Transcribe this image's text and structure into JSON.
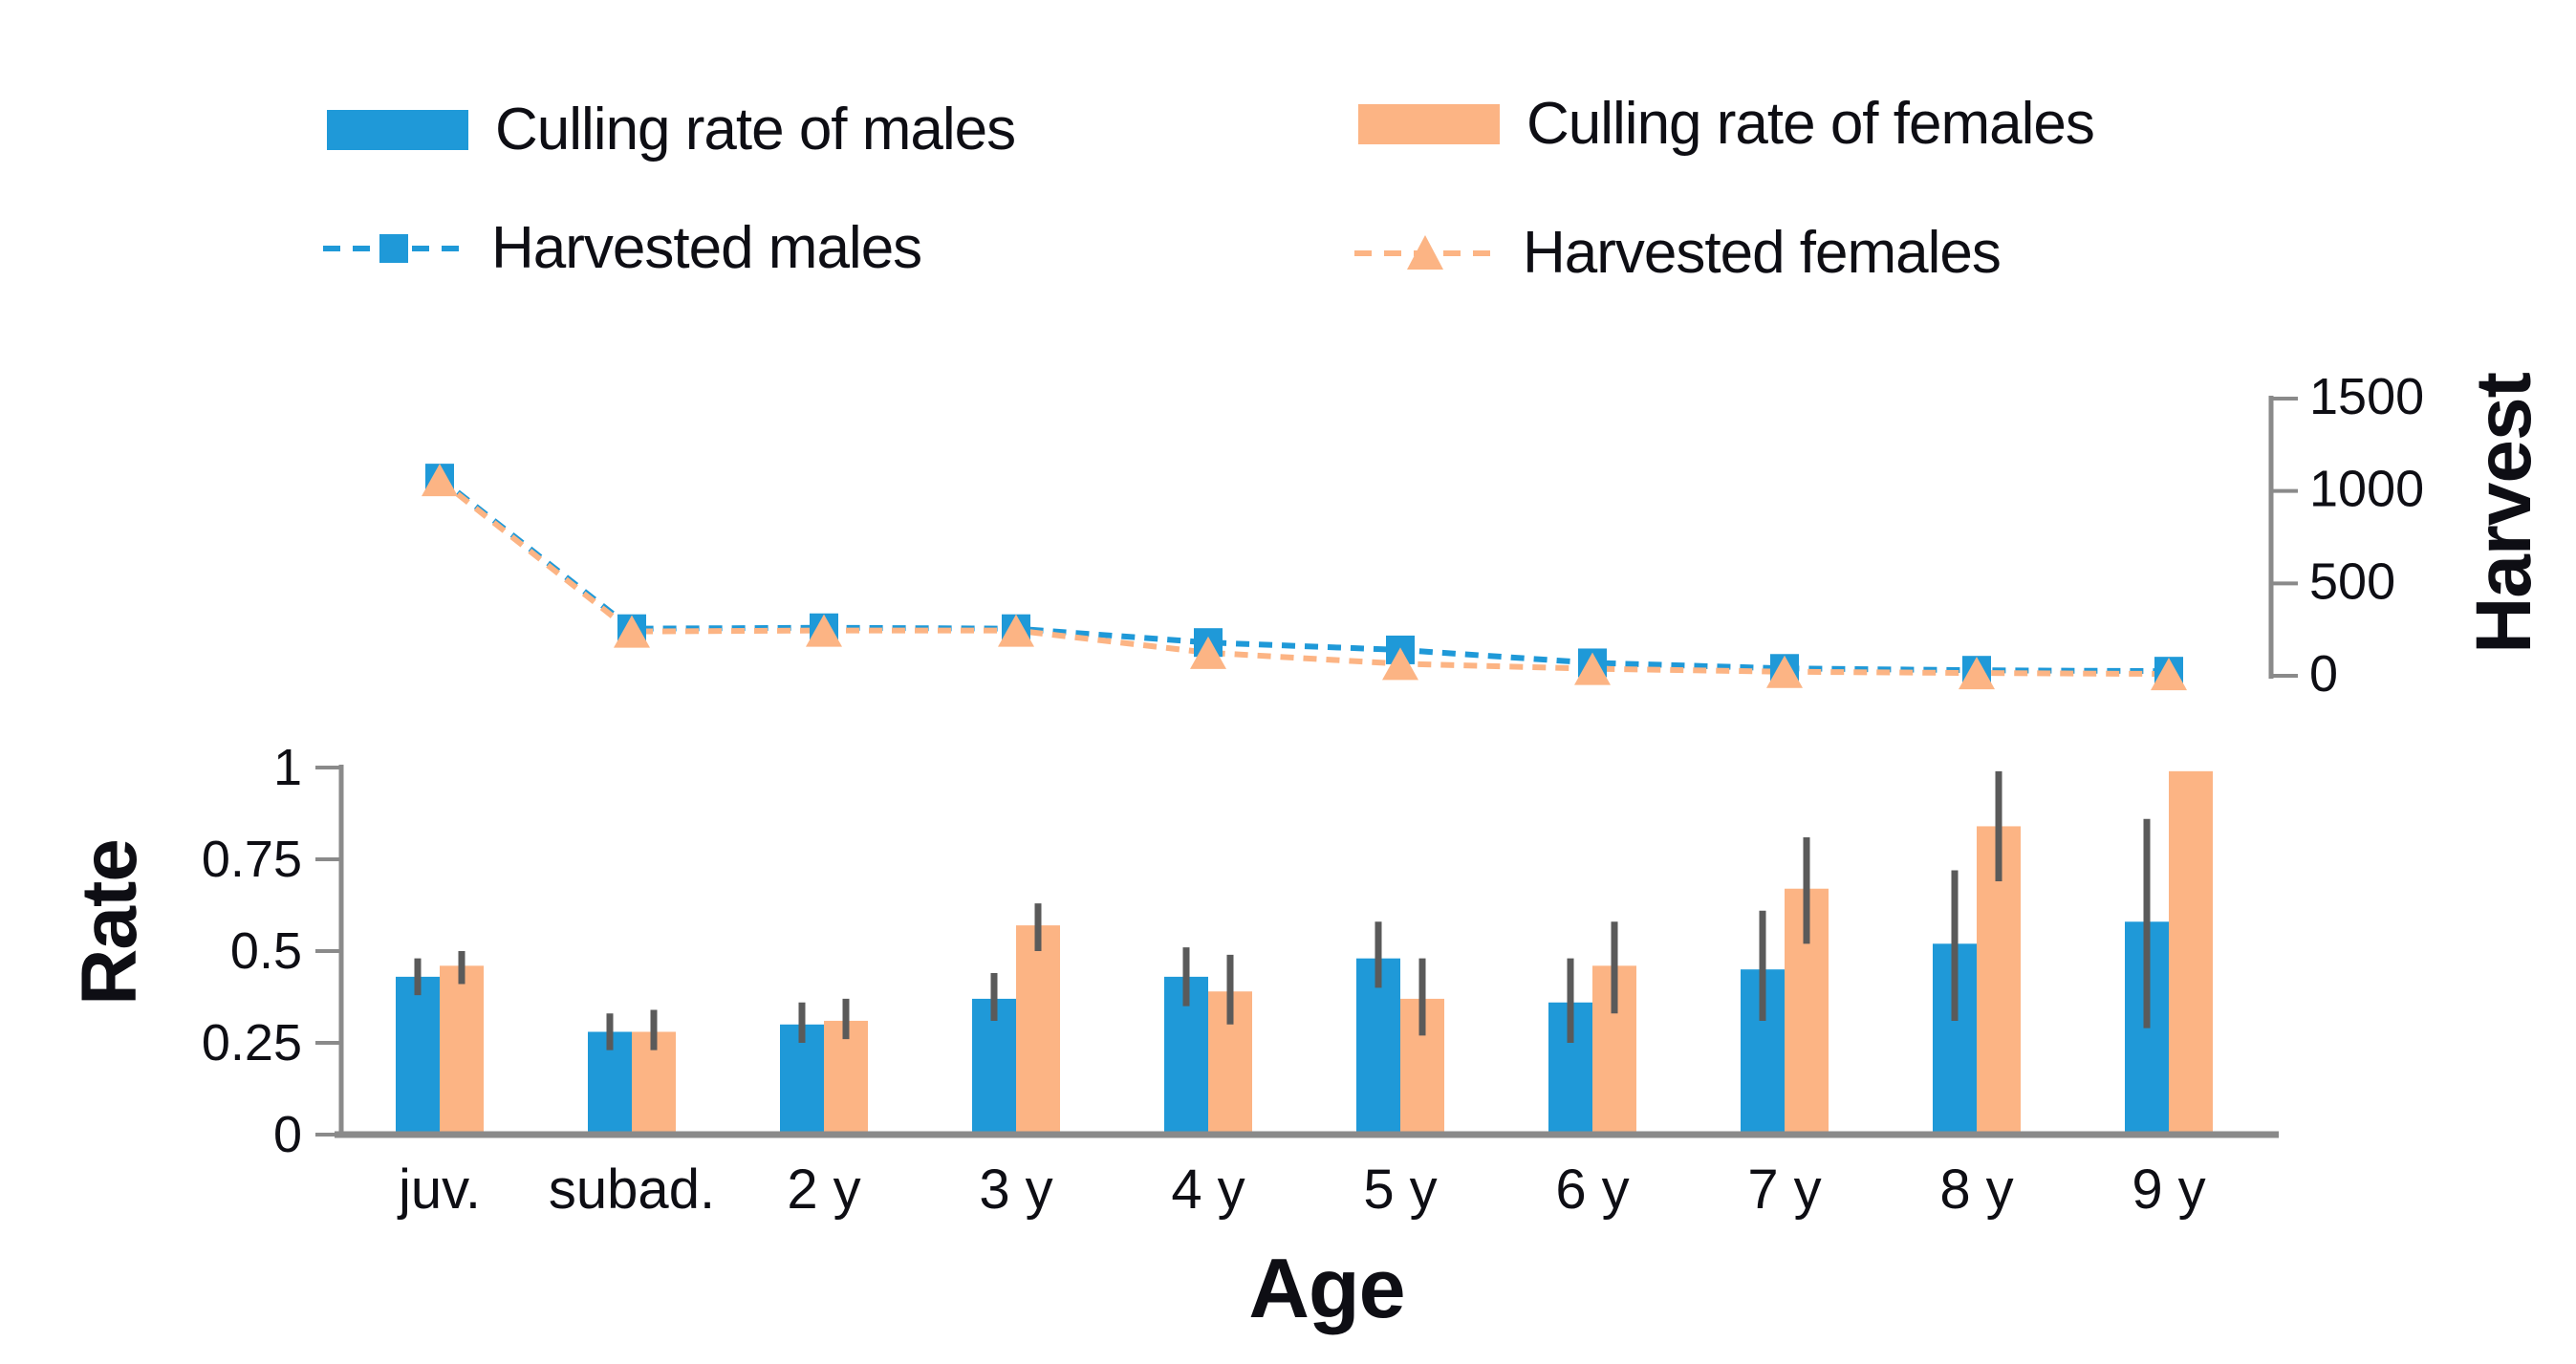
{
  "colors": {
    "males": "#1f99d8",
    "females": "#fcb484",
    "error": "#5a5a5a",
    "axis": "#8a8a8a",
    "text": "#0e0e14"
  },
  "legend": {
    "items": [
      {
        "label": "Culling rate of males",
        "series": "males",
        "glyph": "bar"
      },
      {
        "label": "Culling rate of females",
        "series": "females",
        "glyph": "bar"
      },
      {
        "label": "Harvested males",
        "series": "males",
        "glyph": "line-square"
      },
      {
        "label": "Harvested females",
        "series": "females",
        "glyph": "line-triangle"
      }
    ]
  },
  "chart_data": {
    "type": "bar+line dual-axis",
    "grid": false,
    "legend_position": "top",
    "categories": [
      "juv.",
      "subad.",
      "2 y",
      "3 y",
      "4 y",
      "5 y",
      "6 y",
      "7 y",
      "8 y",
      "9 y"
    ],
    "x_axis": {
      "title": "Age"
    },
    "left_axis": {
      "title": "Rate",
      "range": [
        0,
        1
      ],
      "ticks": [
        0,
        0.25,
        0.5,
        0.75,
        1
      ],
      "tick_labels": [
        "0",
        "0.25",
        "0.5",
        "0.75",
        "1"
      ]
    },
    "right_axis": {
      "title": "Harvest",
      "range": [
        0,
        1500
      ],
      "ticks": [
        0,
        500,
        1000,
        1500
      ],
      "tick_labels": [
        "0",
        "500",
        "1000",
        "1500"
      ]
    },
    "bar_series": [
      {
        "name": "Culling rate of males",
        "color_key": "males",
        "values": [
          0.43,
          0.28,
          0.3,
          0.37,
          0.43,
          0.48,
          0.36,
          0.45,
          0.52,
          0.58
        ],
        "error_low": [
          0.38,
          0.23,
          0.25,
          0.31,
          0.35,
          0.4,
          0.25,
          0.31,
          0.31,
          0.29
        ],
        "error_high": [
          0.48,
          0.33,
          0.36,
          0.44,
          0.51,
          0.58,
          0.48,
          0.61,
          0.72,
          0.86
        ]
      },
      {
        "name": "Culling rate of females",
        "color_key": "females",
        "values": [
          0.46,
          0.28,
          0.31,
          0.57,
          0.39,
          0.37,
          0.46,
          0.67,
          0.84,
          0.99
        ],
        "error_low": [
          0.41,
          0.23,
          0.26,
          0.5,
          0.3,
          0.27,
          0.33,
          0.52,
          0.69,
          null
        ],
        "error_high": [
          0.5,
          0.34,
          0.37,
          0.63,
          0.49,
          0.48,
          0.58,
          0.81,
          0.99,
          null
        ]
      }
    ],
    "line_series": [
      {
        "name": "Harvested males",
        "color_key": "males",
        "marker": "square",
        "values": [
          1070,
          255,
          260,
          255,
          180,
          140,
          70,
          40,
          30,
          25
        ]
      },
      {
        "name": "Harvested females",
        "color_key": "females",
        "marker": "triangle",
        "values": [
          1060,
          240,
          245,
          245,
          125,
          65,
          38,
          22,
          15,
          10
        ]
      }
    ]
  }
}
